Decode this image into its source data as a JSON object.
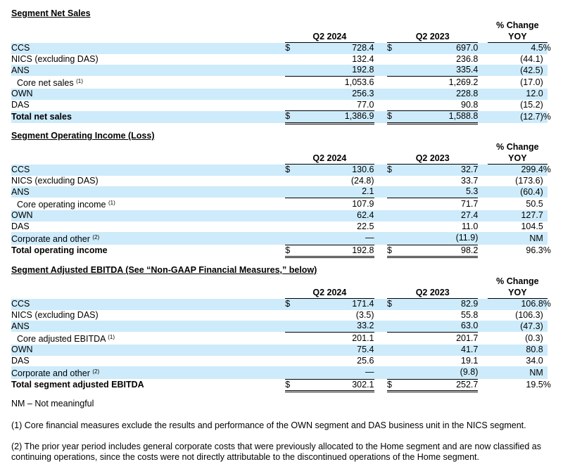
{
  "sections": [
    {
      "title": "Segment Net Sales",
      "col_headers": {
        "q2_2024": "Q2 2024",
        "q2_2023": "Q2 2023",
        "pct_line1": "% Change",
        "pct_line2": "YOY"
      },
      "rows": [
        {
          "label": "CCS",
          "d1": "$",
          "v1": "728.4",
          "d2": "$",
          "v2": "697.0",
          "pct": "4.5",
          "pc": "%"
        },
        {
          "label": "NICS (excluding DAS)",
          "v1": "132.4",
          "v2": "236.8",
          "pct": "(44.1)"
        },
        {
          "label": "ANS",
          "v1": "192.8",
          "v2": "335.4",
          "pct": "(42.5)"
        },
        {
          "label": "Core net sales",
          "sup": "(1)",
          "v1": "1,053.6",
          "v2": "1,269.2",
          "pct": "(17.0)"
        },
        {
          "label": "OWN",
          "v1": "256.3",
          "v2": "228.8",
          "pct": "12.0"
        },
        {
          "label": "DAS",
          "v1": "77.0",
          "v2": "90.8",
          "pct": "(15.2)"
        },
        {
          "label": "Total net sales",
          "d1": "$",
          "v1": "1,386.9",
          "d2": "$",
          "v2": "1,588.8",
          "pct": "(12.7)",
          "pc": "%"
        }
      ]
    },
    {
      "title": "Segment Operating Income (Loss)",
      "col_headers": {
        "q2_2024": "Q2 2024",
        "q2_2023": "Q2 2023",
        "pct_line1": "% Change",
        "pct_line2": "YOY"
      },
      "rows": [
        {
          "label": "CCS",
          "d1": "$",
          "v1": "130.6",
          "d2": "$",
          "v2": "32.7",
          "pct": "299.4",
          "pc": "%"
        },
        {
          "label": "NICS (excluding DAS)",
          "v1": "(24.8)",
          "v2": "33.7",
          "pct": "(173.6)"
        },
        {
          "label": "ANS",
          "v1": "2.1",
          "v2": "5.3",
          "pct": "(60.4)"
        },
        {
          "label": "Core operating income",
          "sup": "(1)",
          "v1": "107.9",
          "v2": "71.7",
          "pct": "50.5"
        },
        {
          "label": "OWN",
          "v1": "62.4",
          "v2": "27.4",
          "pct": "127.7"
        },
        {
          "label": "DAS",
          "v1": "22.5",
          "v2": "11.0",
          "pct": "104.5"
        },
        {
          "label": "Corporate and other",
          "sup": "(2)",
          "v1": "—",
          "v2": "(11.9)",
          "pct": "NM"
        },
        {
          "label": "Total operating income",
          "d1": "$",
          "v1": "192.8",
          "d2": "$",
          "v2": "98.2",
          "pct": "96.3",
          "pc": "%"
        }
      ]
    },
    {
      "title": "Segment Adjusted EBITDA (See “Non-GAAP Financial Measures,” below)",
      "col_headers": {
        "q2_2024": "Q2 2024",
        "q2_2023": "Q2 2023",
        "pct_line1": "% Change",
        "pct_line2": "YOY"
      },
      "rows": [
        {
          "label": "CCS",
          "d1": "$",
          "v1": "171.4",
          "d2": "$",
          "v2": "82.9",
          "pct": "106.8",
          "pc": "%"
        },
        {
          "label": "NICS (excluding DAS)",
          "v1": "(3.5)",
          "v2": "55.8",
          "pct": "(106.3)"
        },
        {
          "label": "ANS",
          "v1": "33.2",
          "v2": "63.0",
          "pct": "(47.3)"
        },
        {
          "label": "Core adjusted EBITDA",
          "sup": "(1)",
          "v1": "201.1",
          "v2": "201.7",
          "pct": "(0.3)"
        },
        {
          "label": "OWN",
          "v1": "75.4",
          "v2": "41.7",
          "pct": "80.8"
        },
        {
          "label": "DAS",
          "v1": "25.6",
          "v2": "19.1",
          "pct": "34.0"
        },
        {
          "label": "Corporate and other",
          "sup": "(2)",
          "v1": "—",
          "v2": "(9.8)",
          "pct": "NM"
        },
        {
          "label": "Total segment adjusted EBITDA",
          "d1": "$",
          "v1": "302.1",
          "d2": "$",
          "v2": "252.7",
          "pct": "19.5",
          "pc": "%"
        }
      ]
    }
  ],
  "notes": {
    "nm": "NM – Not meaningful",
    "fn1": "(1) Core financial measures exclude the results and performance of the OWN segment and DAS business unit in the NICS segment.",
    "fn2": "(2) The prior year period includes general corporate costs that were previously allocated to the Home segment and are now classified as continuing operations, since the costs were not directly attributable to the discontinued operations of the Home segment."
  },
  "colors": {
    "row_shade": "#cdebfb"
  }
}
